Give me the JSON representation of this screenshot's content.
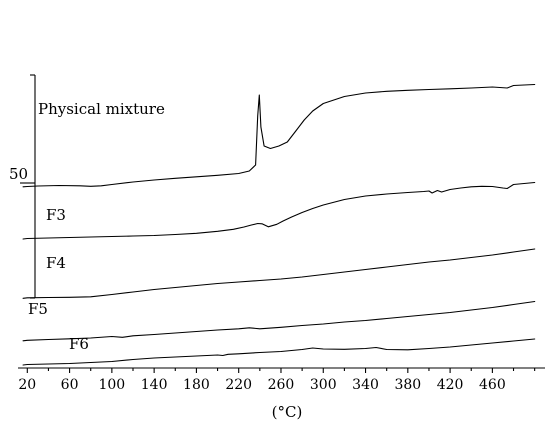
{
  "chart_data": {
    "type": "line",
    "title": "",
    "xlabel": "(°C)",
    "ylabel": "",
    "xlim": [
      10,
      500
    ],
    "x_ticks": [
      20,
      60,
      100,
      140,
      180,
      220,
      260,
      300,
      340,
      380,
      420,
      460
    ],
    "x_tick_labels": [
      "20",
      "60",
      "100",
      "140",
      "180",
      "220",
      "260",
      "300",
      "340",
      "380",
      "420",
      "460"
    ],
    "scale_bar_label": "50",
    "scale_bar_value": 50,
    "grid": false,
    "legend": "none",
    "series": [
      {
        "name": "Physical mixture",
        "x": [
          16,
          20,
          30,
          50,
          70,
          80,
          90,
          100,
          120,
          140,
          160,
          180,
          200,
          220,
          230,
          236,
          238,
          239.5,
          241,
          244,
          250,
          258,
          266,
          274,
          282,
          290,
          300,
          320,
          340,
          360,
          380,
          400,
          420,
          440,
          460,
          474,
          480,
          500
        ],
        "y": [
          -1.5,
          -1,
          0,
          1,
          0.5,
          -0.5,
          0.5,
          3,
          8,
          12,
          15.5,
          18.5,
          21.5,
          25,
          30,
          42,
          140,
          182,
          118,
          80,
          75,
          80,
          88,
          110,
          132,
          150,
          165,
          179,
          186,
          189.5,
          191.5,
          193,
          194.5,
          196,
          198,
          196,
          201,
          203
        ]
      },
      {
        "name": "F3",
        "x": [
          16,
          20,
          40,
          60,
          80,
          100,
          120,
          140,
          160,
          180,
          200,
          215,
          225,
          232,
          238,
          242,
          248,
          256,
          262,
          270,
          280,
          290,
          300,
          320,
          340,
          360,
          380,
          395,
          400,
          403,
          408,
          412,
          420,
          430,
          440,
          450,
          460,
          470,
          474,
          480,
          500
        ],
        "y": [
          -6,
          -5,
          -4,
          -3,
          -2,
          -1,
          0,
          1,
          3,
          5.5,
          9.5,
          13.5,
          18,
          22,
          25,
          24.5,
          18.5,
          23.5,
          30,
          38,
          47,
          55,
          62,
          73,
          80,
          84,
          87,
          89,
          90,
          86,
          91,
          88,
          93,
          96,
          98.5,
          99.5,
          99,
          96,
          95,
          103,
          107
        ]
      },
      {
        "name": "F4",
        "x": [
          16,
          20,
          40,
          60,
          80,
          100,
          120,
          140,
          160,
          180,
          200,
          220,
          240,
          260,
          280,
          300,
          320,
          340,
          360,
          380,
          400,
          420,
          440,
          460,
          480,
          500
        ],
        "y": [
          -2.5,
          -1.5,
          -1,
          -0.5,
          0.5,
          5,
          10,
          15,
          19,
          23,
          27,
          30,
          33,
          36,
          40,
          45,
          50,
          55,
          60,
          65,
          70,
          74,
          79,
          84,
          90,
          96
        ]
      },
      {
        "name": "F5",
        "x": [
          16,
          20,
          40,
          60,
          80,
          100,
          110,
          120,
          140,
          160,
          180,
          200,
          220,
          230,
          240,
          260,
          280,
          300,
          320,
          340,
          360,
          380,
          400,
          420,
          440,
          460,
          480,
          500
        ],
        "y": [
          -5.5,
          -4.5,
          -3,
          -1.5,
          0,
          3,
          1.5,
          4.5,
          7,
          10,
          13,
          16,
          18.5,
          20.5,
          18.5,
          21.5,
          25,
          28,
          32,
          35,
          39,
          43,
          47,
          51,
          56,
          61,
          67,
          73
        ]
      },
      {
        "name": "F6",
        "x": [
          16,
          20,
          40,
          60,
          80,
          100,
          120,
          140,
          160,
          180,
          200,
          205,
          210,
          220,
          240,
          260,
          280,
          290,
          300,
          320,
          340,
          350,
          360,
          380,
          400,
          420,
          440,
          460,
          480,
          500
        ],
        "y": [
          -6,
          -5,
          -4,
          -3,
          -1,
          1,
          5,
          8,
          10,
          12,
          14,
          13,
          15.5,
          16.5,
          19,
          21,
          25,
          28,
          26,
          25.5,
          27,
          29,
          25,
          24.5,
          27,
          30,
          34,
          38,
          42,
          46
        ]
      }
    ]
  }
}
